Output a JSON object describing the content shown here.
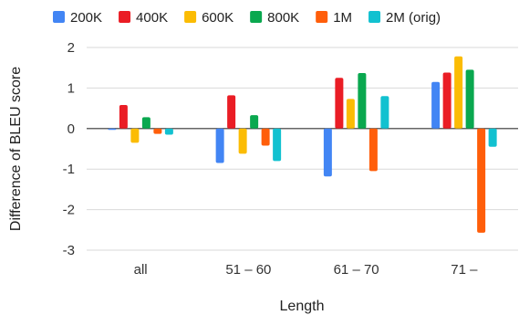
{
  "chart_data": {
    "type": "bar",
    "title": "",
    "xlabel": "Length",
    "ylabel": "Difference of BLEU score",
    "ylim": [
      -3,
      2
    ],
    "yticks": [
      2,
      1,
      0,
      -1,
      -2,
      -3
    ],
    "grid": true,
    "legend_position": "top",
    "categories": [
      "all",
      "51 – 60",
      "61 – 70",
      "71 –"
    ],
    "series": [
      {
        "name": "200K",
        "color": "#4285f4",
        "values": [
          -0.02,
          -0.85,
          -1.18,
          1.15
        ]
      },
      {
        "name": "400K",
        "color": "#ea1d25",
        "values": [
          0.58,
          0.82,
          1.25,
          1.38
        ]
      },
      {
        "name": "600K",
        "color": "#fbbc04",
        "values": [
          -0.35,
          -0.62,
          0.73,
          1.78
        ]
      },
      {
        "name": "800K",
        "color": "#0aa84f",
        "values": [
          0.28,
          0.33,
          1.37,
          1.45
        ]
      },
      {
        "name": "1M",
        "color": "#ff5e0a",
        "values": [
          -0.13,
          -0.42,
          -1.05,
          -2.57
        ]
      },
      {
        "name": "2M (orig)",
        "color": "#12c1d0",
        "values": [
          -0.15,
          -0.8,
          0.8,
          -0.45
        ]
      }
    ]
  }
}
